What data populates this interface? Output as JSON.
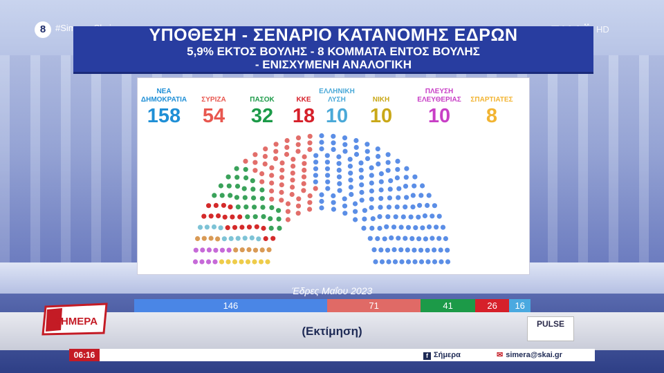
{
  "channel": {
    "badge": "8",
    "hashtag": "#Simera_Skai",
    "logo": "ΣΚΑΪ",
    "hd": "HD"
  },
  "title": {
    "line1": "ΥΠΟΘΕΣΗ - ΣΕΝΑΡΙΟ ΚΑΤΑΝΟΜΗΣ ΕΔΡΩΝ",
    "line2": "5,9% ΕΚΤΟΣ ΒΟΥΛΗΣ - 8 ΚΟΜΜΑΤΑ ΕΝΤΟΣ ΒΟΥΛΗΣ",
    "line3": "- ΕΝΙΣΧΥΜΕΝΗ ΑΝΑΛΟΓΙΚΗ"
  },
  "parties": [
    {
      "name": "ΝΕΑ ΔΗΜΟΚΡΑΤΙΑ",
      "seats": 158,
      "color": "#1f8fd6"
    },
    {
      "name": "ΣΥΡΙΖΑ",
      "seats": 54,
      "color": "#e8574f"
    },
    {
      "name": "ΠΑΣΟΚ",
      "seats": 32,
      "color": "#1c9a48"
    },
    {
      "name": "ΚΚΕ",
      "seats": 18,
      "color": "#d6202a"
    },
    {
      "name": "ΕΛΛΗΝΙΚΗ ΛΥΣΗ",
      "seats": 10,
      "color": "#4aa9d8"
    },
    {
      "name": "ΝΙΚΗ",
      "seats": 10,
      "color": "#c9a818"
    },
    {
      "name": "ΠΛΕΥΣΗ ΕΛΕΥΘΕΡΙΑΣ",
      "seats": 10,
      "color": "#c83fc6"
    },
    {
      "name": "ΣΠΑΡΤΙΑΤΕΣ",
      "seats": 8,
      "color": "#f2b432"
    }
  ],
  "hemicycle_colors": {
    "ΝΕΑ ΔΗΜΟΚΡΑΤΙΑ": "#5b8ee6",
    "ΣΥΡΙΖΑ": "#e26e6a",
    "ΠΑΣΟΚ": "#3aa25a",
    "ΚΚΕ": "#d42a2a",
    "ΕΛΛΗΝΙΚΗ ΛΥΣΗ": "#7ec3d6",
    "ΝΙΚΗ": "#d99a55",
    "ΠΛΕΥΣΗ ΕΛΕΥΘΕΡΙΑΣ": "#c66ad8",
    "ΣΠΑΡΤΙΑΤΕΣ": "#eecc4a"
  },
  "previous": {
    "label": "Έδρες Μαΐου 2023",
    "segments": [
      {
        "value": 146,
        "color": "#4a86e6"
      },
      {
        "value": 71,
        "color": "#e06a66"
      },
      {
        "value": 41,
        "color": "#1c9a48"
      },
      {
        "value": 26,
        "color": "#d6202a"
      },
      {
        "value": 16,
        "color": "#4aa9e0"
      }
    ]
  },
  "estimate": "(Εκτίμηση)",
  "show": {
    "logo": "ΣΗΜΕΡΑ"
  },
  "pollster": "PULSE",
  "ticker": {
    "time": "06:16",
    "facebook": "Σήμερα",
    "email": "simera@skai.gr"
  }
}
